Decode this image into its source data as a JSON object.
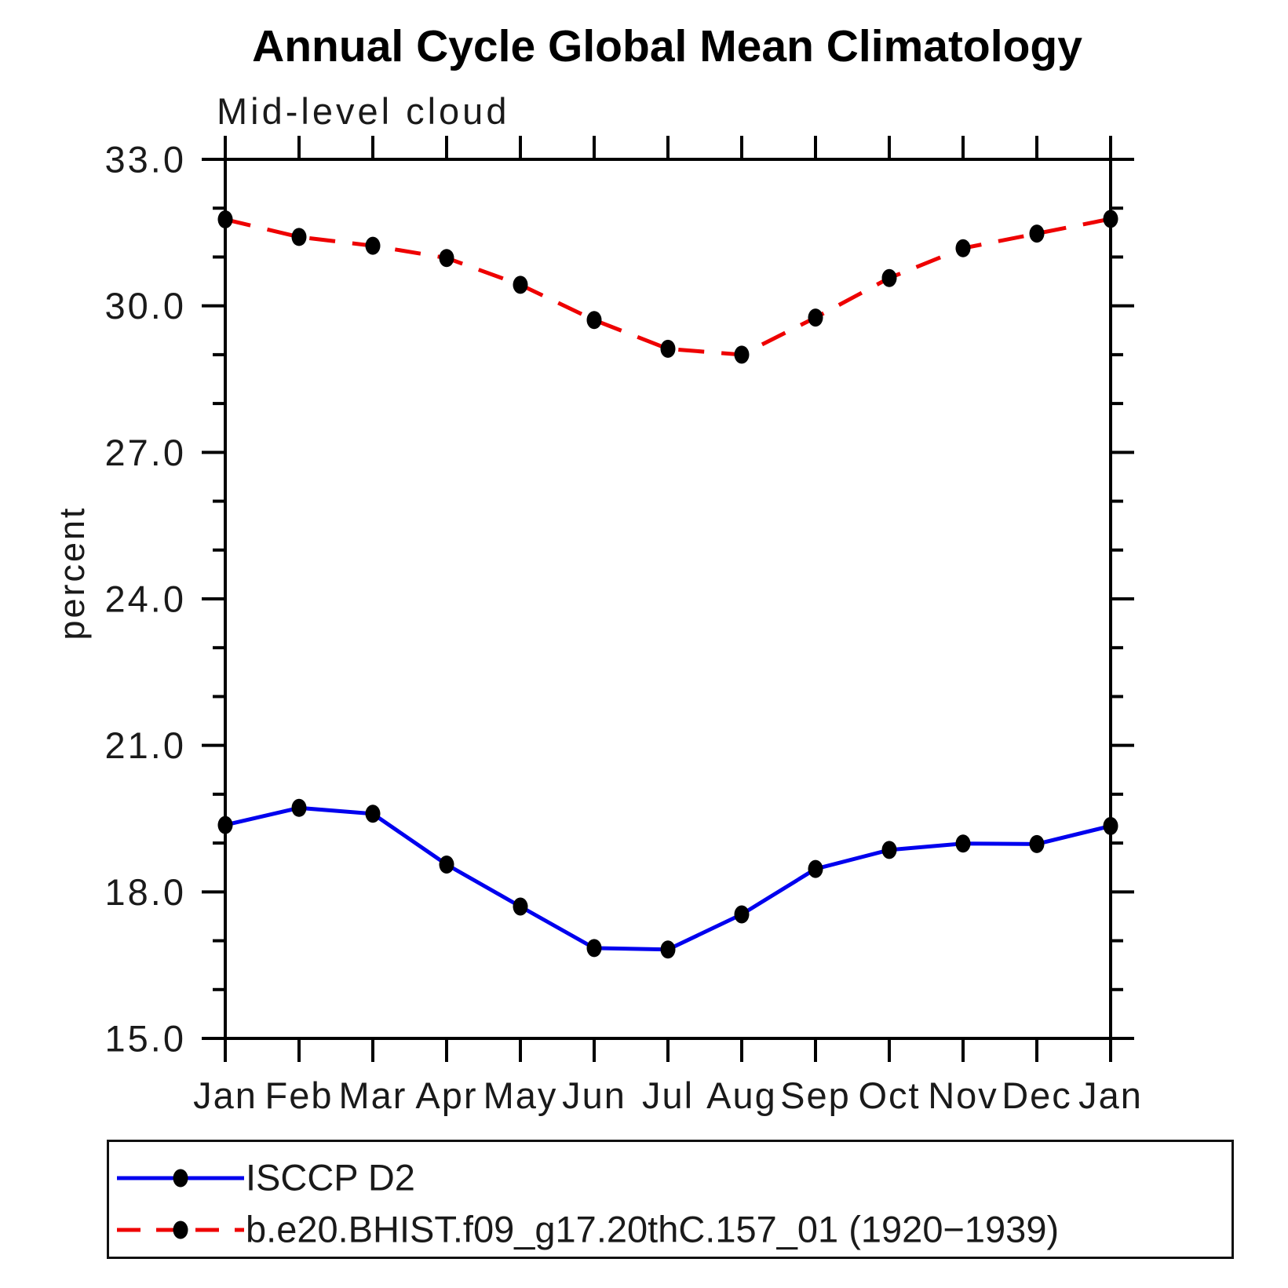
{
  "chart_data": {
    "type": "line",
    "title": "Annual Cycle Global Mean Climatology",
    "subtitle": "Mid-level cloud",
    "ylabel": "percent",
    "categories": [
      "Jan",
      "Feb",
      "Mar",
      "Apr",
      "May",
      "Jun",
      "Jul",
      "Aug",
      "Sep",
      "Oct",
      "Nov",
      "Dec",
      "Jan"
    ],
    "ylim": [
      15.0,
      33.0
    ],
    "y_major_ticks": [
      15.0,
      18.0,
      21.0,
      24.0,
      27.0,
      30.0,
      33.0
    ],
    "y_tick_labels": [
      "15.0",
      "18.0",
      "21.0",
      "24.0",
      "27.0",
      "30.0",
      "33.0"
    ],
    "y_minor_step": 1.0,
    "grid": false,
    "legend_position": "bottom",
    "axis_color": "#000000",
    "series": [
      {
        "name": "ISCCP D2",
        "color": "#0000ee",
        "line_style": "solid",
        "marker": "filled-circle",
        "marker_color": "#000000",
        "values": [
          19.37,
          19.72,
          19.6,
          18.56,
          17.7,
          16.85,
          16.82,
          17.54,
          18.47,
          18.86,
          18.99,
          18.98,
          19.35
        ]
      },
      {
        "name": "b.e20.BHIST.f09_g17.20thC.157_01 (1920−1939)",
        "color": "#ee0000",
        "line_style": "dashed",
        "marker": "filled-circle",
        "marker_color": "#000000",
        "values": [
          31.77,
          31.41,
          31.23,
          30.98,
          30.43,
          29.71,
          29.12,
          29.0,
          29.76,
          30.57,
          31.18,
          31.48,
          31.78
        ]
      }
    ]
  }
}
